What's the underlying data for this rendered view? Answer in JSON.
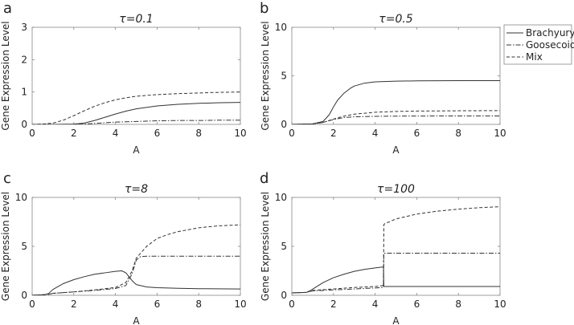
{
  "colors": {
    "line": "#333333",
    "frame": "#888888",
    "text": "#222222"
  },
  "legend": {
    "placement": "right of panel b",
    "entries": [
      {
        "label": "Brachyury",
        "style": "solid"
      },
      {
        "label": "Goosecoid",
        "style": "dashdot"
      },
      {
        "label": "Mix",
        "style": "dashed"
      }
    ]
  },
  "chart_data": [
    {
      "type": "line",
      "panel_label": "a",
      "title": "τ=0.1",
      "xlabel": "A",
      "ylabel": "Gene Expression Level",
      "xlim": [
        0,
        10
      ],
      "ylim": [
        0,
        3
      ],
      "xticks": [
        "0",
        "2",
        "4",
        "6",
        "8",
        "10"
      ],
      "yticks": [
        "0",
        "1",
        "2",
        "3"
      ],
      "series": [
        {
          "name": "Brachyury",
          "style": "solid",
          "x": [
            0,
            1,
            2,
            2.5,
            3,
            3.5,
            4,
            4.5,
            5,
            6,
            7,
            8,
            9,
            10
          ],
          "y": [
            0,
            0,
            0.01,
            0.04,
            0.12,
            0.22,
            0.32,
            0.41,
            0.48,
            0.57,
            0.62,
            0.65,
            0.67,
            0.68
          ]
        },
        {
          "name": "Goosecoid",
          "style": "dashdot",
          "x": [
            0,
            2,
            2.5,
            3,
            4,
            5,
            6,
            7,
            8,
            9,
            10
          ],
          "y": [
            0,
            0,
            0.01,
            0.03,
            0.07,
            0.09,
            0.11,
            0.12,
            0.12,
            0.13,
            0.13
          ]
        },
        {
          "name": "Mix",
          "style": "dashed",
          "x": [
            0,
            0.5,
            1,
            1.5,
            2,
            2.5,
            3,
            3.5,
            4,
            4.5,
            5,
            6,
            7,
            8,
            9,
            10
          ],
          "y": [
            0,
            0.01,
            0.04,
            0.13,
            0.27,
            0.42,
            0.56,
            0.67,
            0.76,
            0.82,
            0.87,
            0.92,
            0.95,
            0.97,
            0.99,
            1.0
          ]
        }
      ]
    },
    {
      "type": "line",
      "panel_label": "b",
      "title": "τ=0.5",
      "xlabel": "A",
      "ylabel": "Gene Expression Level",
      "xlim": [
        0,
        10
      ],
      "ylim": [
        0,
        10
      ],
      "xticks": [
        "0",
        "2",
        "4",
        "6",
        "8",
        "10"
      ],
      "yticks": [
        "0",
        "5",
        "10"
      ],
      "series": [
        {
          "name": "Brachyury",
          "style": "solid",
          "x": [
            0,
            1,
            1.5,
            1.8,
            2,
            2.2,
            2.5,
            2.8,
            3,
            3.5,
            4,
            5,
            6,
            8,
            10
          ],
          "y": [
            0,
            0.05,
            0.3,
            1.0,
            1.8,
            2.5,
            3.2,
            3.7,
            3.95,
            4.25,
            4.38,
            4.45,
            4.48,
            4.5,
            4.5
          ]
        },
        {
          "name": "Goosecoid",
          "style": "dashdot",
          "x": [
            0,
            1,
            1.5,
            2,
            2.5,
            3,
            4,
            5,
            6,
            8,
            10
          ],
          "y": [
            0,
            0.05,
            0.2,
            0.5,
            0.7,
            0.78,
            0.83,
            0.85,
            0.86,
            0.87,
            0.87
          ]
        },
        {
          "name": "Mix",
          "style": "dashed",
          "x": [
            0,
            1,
            1.5,
            2,
            2.5,
            3,
            4,
            5,
            6,
            8,
            10
          ],
          "y": [
            0,
            0.05,
            0.2,
            0.55,
            0.85,
            1.05,
            1.25,
            1.33,
            1.37,
            1.4,
            1.42
          ]
        }
      ]
    },
    {
      "type": "line",
      "panel_label": "c",
      "title": "τ=8",
      "xlabel": "A",
      "ylabel": "Gene Expression Level",
      "xlim": [
        0,
        10
      ],
      "ylim": [
        0,
        10
      ],
      "xticks": [
        "0",
        "2",
        "4",
        "6",
        "8",
        "10"
      ],
      "yticks": [
        "0",
        "5",
        "10"
      ],
      "series": [
        {
          "name": "Brachyury",
          "style": "solid",
          "x": [
            0,
            0.6,
            0.8,
            1,
            1.5,
            2,
            2.5,
            3,
            3.5,
            4,
            4.3,
            4.5,
            4.8,
            5,
            5.5,
            6,
            7,
            8,
            10
          ],
          "y": [
            0,
            0.05,
            0.2,
            0.6,
            1.2,
            1.6,
            1.9,
            2.15,
            2.3,
            2.45,
            2.5,
            2.3,
            1.5,
            1.1,
            0.85,
            0.78,
            0.72,
            0.68,
            0.65
          ]
        },
        {
          "name": "Goosecoid",
          "style": "dashdot",
          "x": [
            0,
            0.8,
            1,
            2,
            3,
            4,
            4.5,
            4.8,
            5,
            5.2,
            5.5,
            6,
            7,
            8,
            10
          ],
          "y": [
            0,
            0.1,
            0.2,
            0.35,
            0.5,
            0.7,
            1.0,
            2.2,
            3.6,
            3.95,
            4.0,
            4.0,
            4.0,
            4.0,
            4.0
          ]
        },
        {
          "name": "Mix",
          "style": "dashed",
          "x": [
            0,
            0.8,
            1,
            2,
            3,
            4,
            4.5,
            4.8,
            5,
            5.5,
            6,
            6.5,
            7,
            8,
            9,
            10
          ],
          "y": [
            0,
            0.1,
            0.2,
            0.35,
            0.55,
            0.8,
            1.3,
            2.5,
            3.8,
            5.0,
            5.8,
            6.2,
            6.5,
            6.9,
            7.1,
            7.2
          ]
        }
      ]
    },
    {
      "type": "line",
      "panel_label": "d",
      "title": "τ=100",
      "xlabel": "A",
      "ylabel": "Gene Expression Level",
      "xlim": [
        0,
        10
      ],
      "ylim": [
        0,
        10
      ],
      "xticks": [
        "0",
        "2",
        "4",
        "6",
        "8",
        "10"
      ],
      "yticks": [
        "0",
        "5",
        "10"
      ],
      "series": [
        {
          "name": "Brachyury",
          "style": "solid",
          "x": [
            0,
            0.7,
            0.9,
            1.2,
            1.5,
            2,
            2.5,
            3,
            3.5,
            4,
            4.4,
            4.42,
            4.45,
            5,
            6,
            8,
            10
          ],
          "y": [
            0.25,
            0.3,
            0.5,
            0.9,
            1.3,
            1.8,
            2.15,
            2.45,
            2.65,
            2.8,
            2.9,
            0.9,
            0.9,
            0.9,
            0.9,
            0.9,
            0.9
          ]
        },
        {
          "name": "Goosecoid",
          "style": "dashdot",
          "x": [
            0,
            0.7,
            1,
            2,
            3,
            4,
            4.4,
            4.42,
            4.45,
            5,
            6,
            8,
            10
          ],
          "y": [
            0.25,
            0.3,
            0.45,
            0.55,
            0.65,
            0.75,
            0.8,
            4.3,
            4.3,
            4.3,
            4.3,
            4.3,
            4.3
          ]
        },
        {
          "name": "Mix",
          "style": "dashed",
          "x": [
            0,
            0.7,
            1,
            2,
            3,
            4,
            4.4,
            4.42,
            4.45,
            5,
            6,
            7,
            8,
            9,
            10
          ],
          "y": [
            0.25,
            0.3,
            0.5,
            0.65,
            0.8,
            0.9,
            1.0,
            7.2,
            7.3,
            7.8,
            8.3,
            8.6,
            8.8,
            8.95,
            9.05
          ]
        }
      ]
    }
  ]
}
